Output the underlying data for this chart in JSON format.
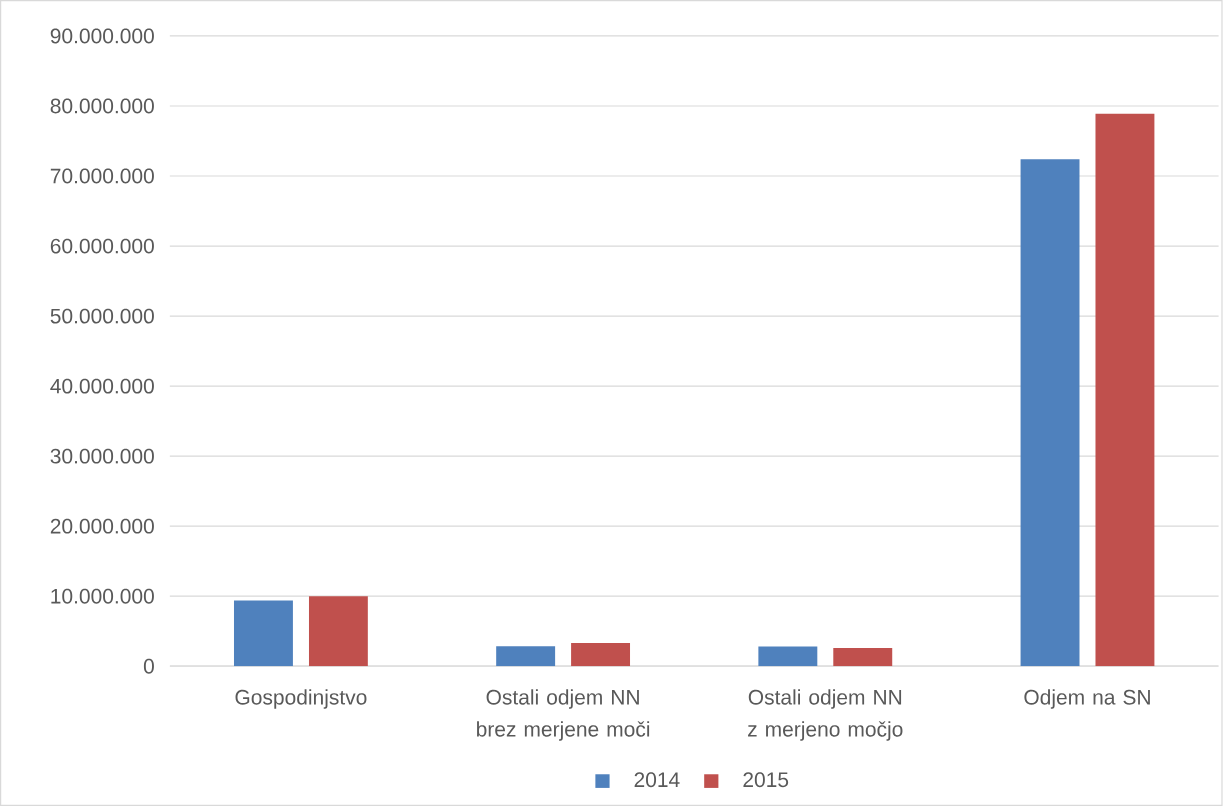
{
  "chart_data": {
    "type": "bar",
    "categories": [
      "Gospodinjstvo",
      "Ostali odjem NN brez merjene moči",
      "Ostali odjem NN z merjeno močjo",
      "Odjem na SN"
    ],
    "series": [
      {
        "name": "2014",
        "color": "#4f81bd",
        "values": [
          9400000,
          2850000,
          2800000,
          72400000
        ]
      },
      {
        "name": "2015",
        "color": "#c0504d",
        "values": [
          10000000,
          3300000,
          2600000,
          78900000
        ]
      }
    ],
    "ylim": [
      0,
      90000000
    ],
    "yticks": [
      {
        "value": 0,
        "label": "0"
      },
      {
        "value": 10000000,
        "label": "10.000.000"
      },
      {
        "value": 20000000,
        "label": "20.000.000"
      },
      {
        "value": 30000000,
        "label": "30.000.000"
      },
      {
        "value": 40000000,
        "label": "40.000.000"
      },
      {
        "value": 50000000,
        "label": "50.000.000"
      },
      {
        "value": 60000000,
        "label": "60.000.000"
      },
      {
        "value": 70000000,
        "label": "70.000.000"
      },
      {
        "value": 80000000,
        "label": "80.000.000"
      },
      {
        "value": 90000000,
        "label": "90.000.000"
      }
    ],
    "grid": "y",
    "legend": "bottom"
  }
}
